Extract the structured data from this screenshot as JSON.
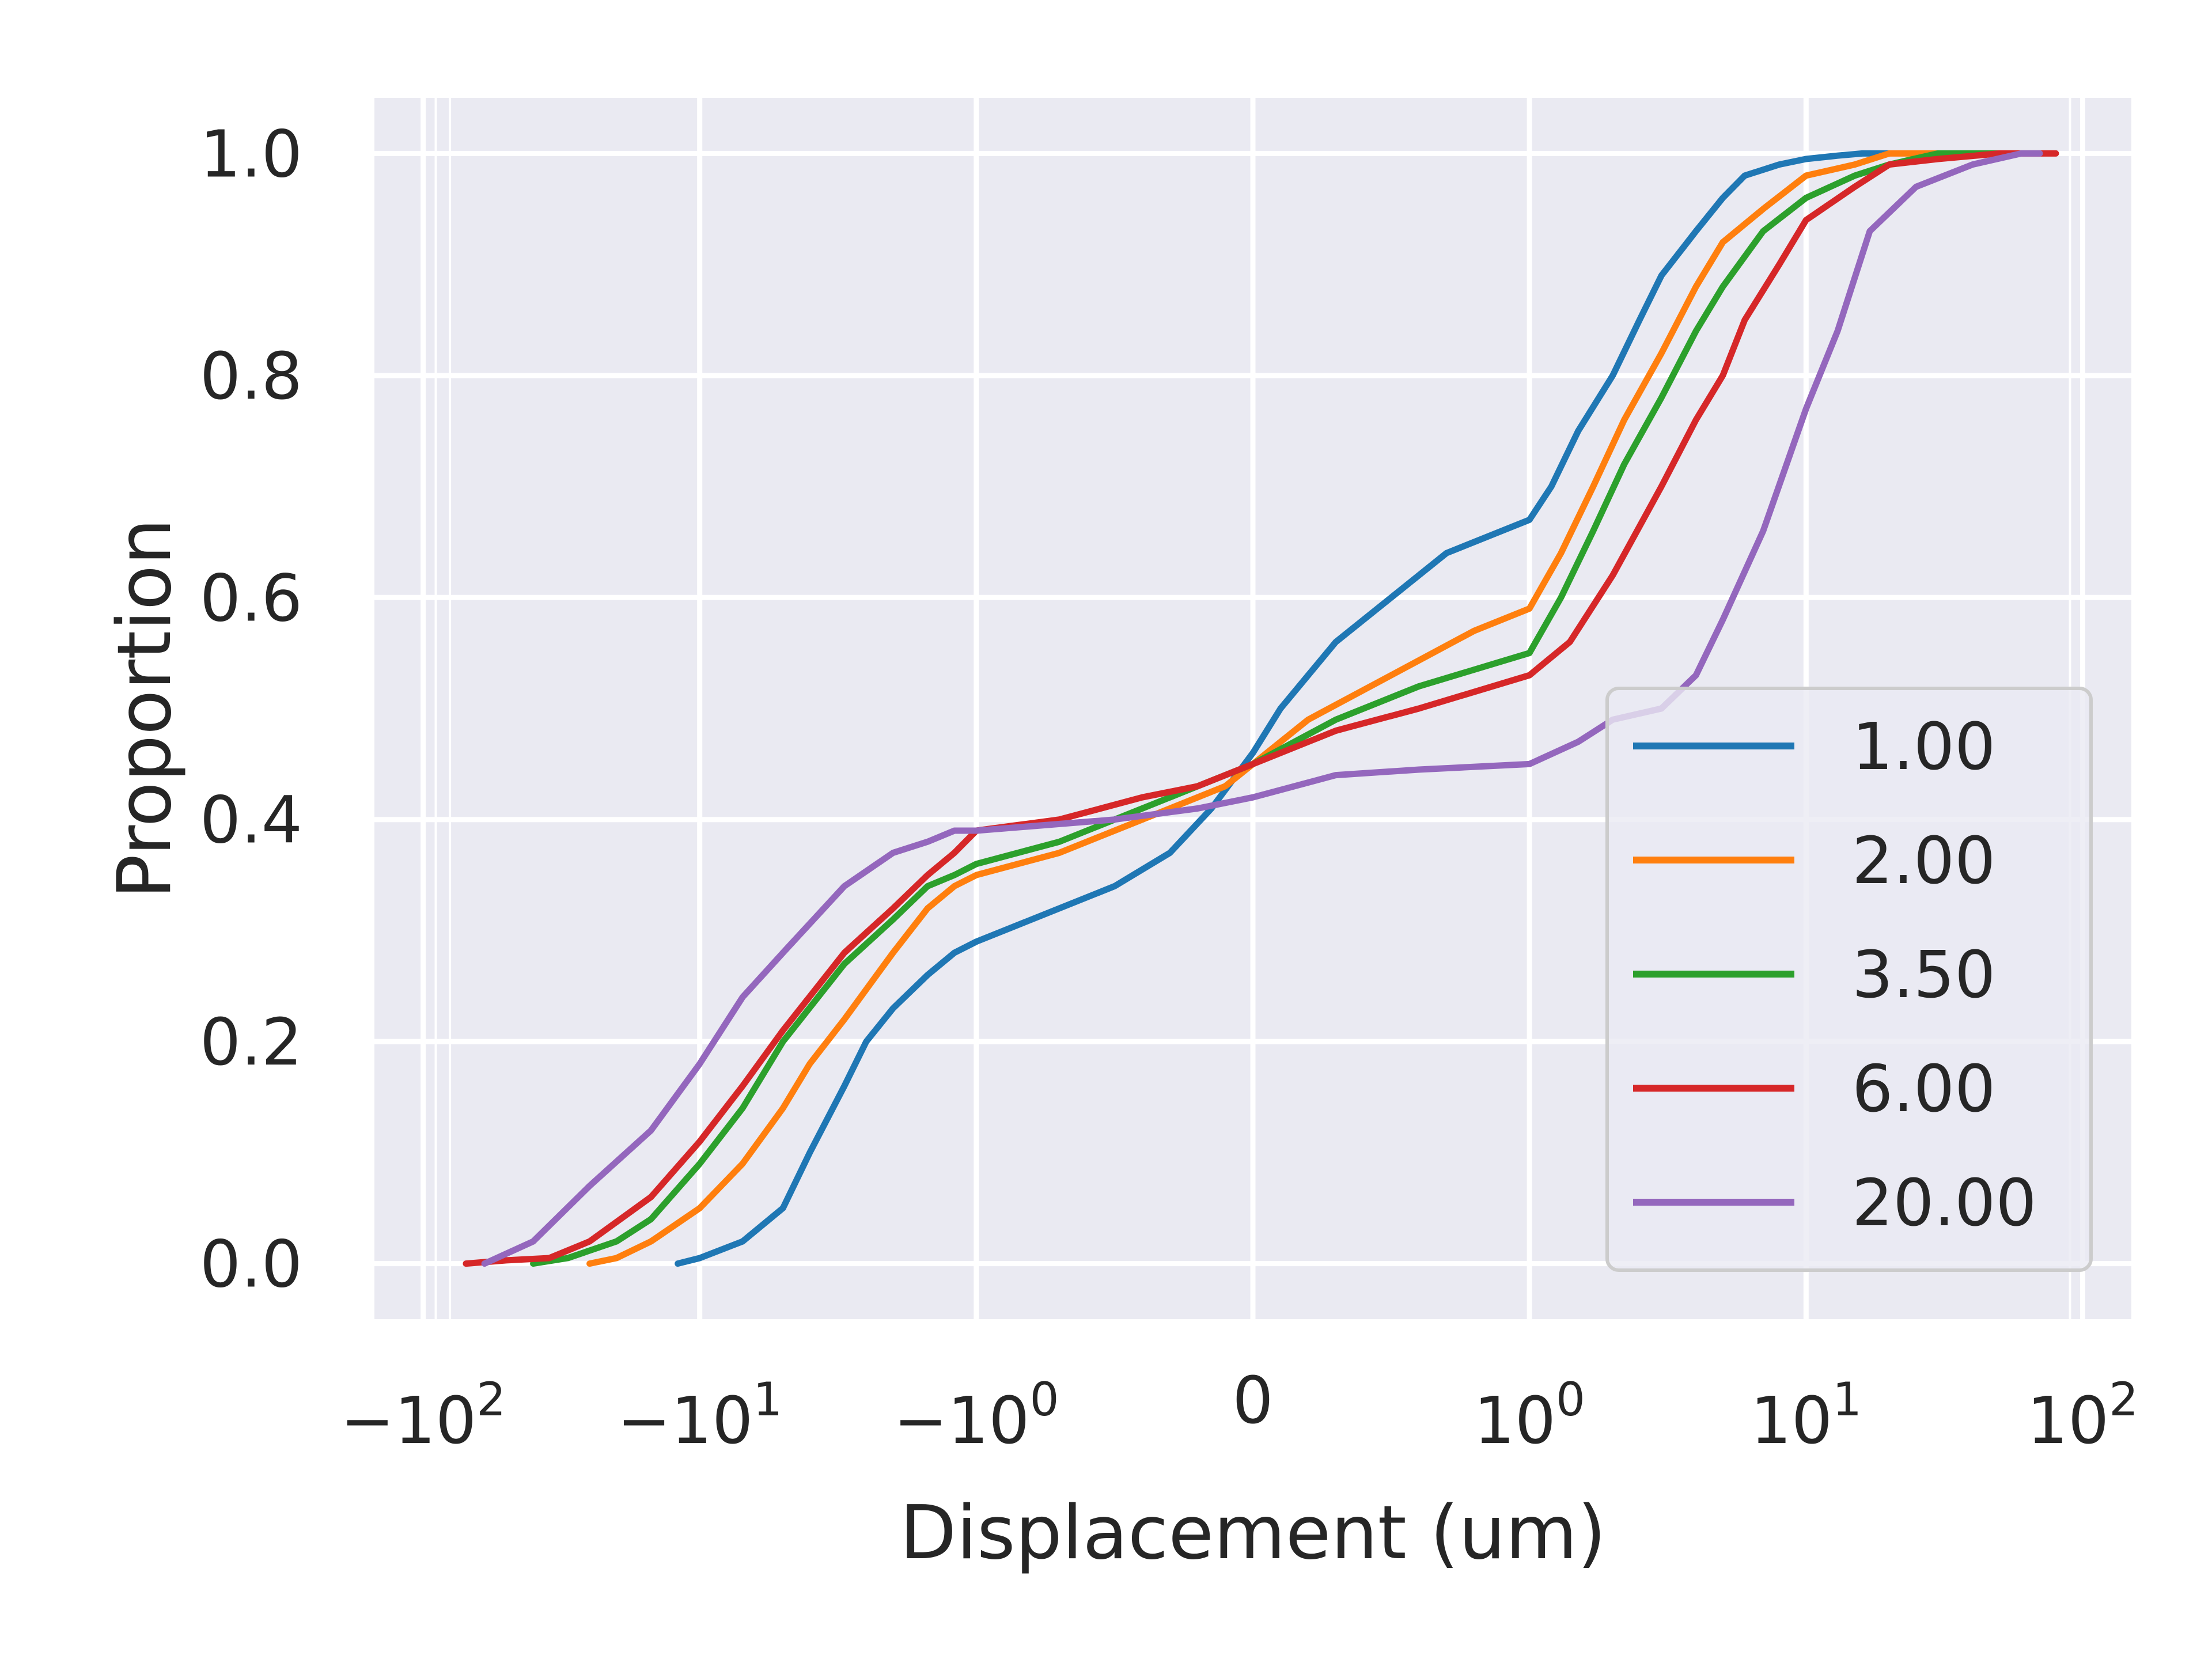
{
  "chart_data": {
    "type": "line",
    "title": "",
    "xlabel": "Displacement (um)",
    "ylabel": "Proportion",
    "xscale": "symlog",
    "xlim": [
      -150,
      150
    ],
    "ylim": [
      -0.05,
      1.05
    ],
    "grid": true,
    "background": "#EAEAF2",
    "x_ticks": [
      {
        "value": -100,
        "base": "−10",
        "exp": "2"
      },
      {
        "value": -10,
        "base": "−10",
        "exp": "1"
      },
      {
        "value": -1,
        "base": "−10",
        "exp": "0"
      },
      {
        "value": 0,
        "base": "0",
        "exp": ""
      },
      {
        "value": 1,
        "base": "10",
        "exp": "0"
      },
      {
        "value": 10,
        "base": "10",
        "exp": "1"
      },
      {
        "value": 100,
        "base": "10",
        "exp": "2"
      }
    ],
    "y_ticks": [
      {
        "value": 0.0,
        "label": "0.0"
      },
      {
        "value": 0.2,
        "label": "0.2"
      },
      {
        "value": 0.4,
        "label": "0.4"
      },
      {
        "value": 0.6,
        "label": "0.6"
      },
      {
        "value": 0.8,
        "label": "0.8"
      },
      {
        "value": 1.0,
        "label": "1.0"
      }
    ],
    "legend_position": "lower-right",
    "series": [
      {
        "name": "1.00",
        "color": "#1f77b4",
        "x": [
          -12,
          -10,
          -7,
          -5,
          -4,
          -3,
          -2.5,
          -2,
          -1.5,
          -1.2,
          -1,
          -0.8,
          -0.5,
          -0.3,
          -0.15,
          0,
          0.1,
          0.2,
          0.3,
          0.5,
          0.7,
          1,
          1.2,
          1.5,
          2,
          2.5,
          3,
          4,
          5,
          6,
          8,
          10,
          13,
          16,
          20
        ],
        "y": [
          0,
          0.005,
          0.02,
          0.05,
          0.1,
          0.16,
          0.2,
          0.23,
          0.26,
          0.28,
          0.29,
          0.31,
          0.34,
          0.37,
          0.41,
          0.46,
          0.5,
          0.53,
          0.56,
          0.6,
          0.64,
          0.67,
          0.7,
          0.75,
          0.8,
          0.85,
          0.89,
          0.93,
          0.96,
          0.98,
          0.99,
          0.995,
          0.998,
          1.0,
          1.0
        ]
      },
      {
        "name": "2.00",
        "color": "#ff7f0e",
        "x": [
          -25,
          -20,
          -15,
          -10,
          -7,
          -5,
          -4,
          -3,
          -2,
          -1.5,
          -1.2,
          -1,
          -0.7,
          -0.5,
          -0.3,
          -0.1,
          0,
          0.2,
          0.5,
          0.8,
          1,
          1.3,
          1.7,
          2.2,
          3,
          4,
          5,
          7,
          10,
          15,
          20,
          30
        ],
        "y": [
          0,
          0.005,
          0.02,
          0.05,
          0.09,
          0.14,
          0.18,
          0.22,
          0.28,
          0.32,
          0.34,
          0.35,
          0.37,
          0.39,
          0.41,
          0.43,
          0.45,
          0.49,
          0.53,
          0.57,
          0.59,
          0.64,
          0.7,
          0.76,
          0.82,
          0.88,
          0.92,
          0.95,
          0.98,
          0.99,
          1.0,
          1.0
        ]
      },
      {
        "name": "3.50",
        "color": "#2ca02c",
        "x": [
          -40,
          -30,
          -20,
          -15,
          -10,
          -7,
          -5,
          -3,
          -2,
          -1.5,
          -1.2,
          -1,
          -0.7,
          -0.4,
          -0.2,
          0,
          0.3,
          0.6,
          1,
          1.3,
          1.7,
          2.2,
          3,
          4,
          5,
          7,
          10,
          15,
          20,
          30,
          50
        ],
        "y": [
          0,
          0.005,
          0.02,
          0.04,
          0.09,
          0.14,
          0.2,
          0.27,
          0.31,
          0.34,
          0.35,
          0.36,
          0.38,
          0.41,
          0.43,
          0.45,
          0.49,
          0.52,
          0.55,
          0.6,
          0.66,
          0.72,
          0.78,
          0.84,
          0.88,
          0.93,
          0.96,
          0.98,
          0.99,
          1.0,
          1.0
        ]
      },
      {
        "name": "6.00",
        "color": "#d62728",
        "x": [
          -70,
          -50,
          -35,
          -25,
          -15,
          -10,
          -7,
          -5,
          -3,
          -2,
          -1.5,
          -1.2,
          -1,
          -0.7,
          -0.4,
          -0.2,
          0,
          0.3,
          0.6,
          1,
          1.4,
          2,
          3,
          4,
          5,
          6,
          8,
          10,
          15,
          20,
          30,
          50,
          80
        ],
        "y": [
          0,
          0.003,
          0.005,
          0.02,
          0.06,
          0.11,
          0.16,
          0.21,
          0.28,
          0.32,
          0.35,
          0.37,
          0.39,
          0.4,
          0.42,
          0.43,
          0.45,
          0.48,
          0.5,
          0.53,
          0.56,
          0.62,
          0.7,
          0.76,
          0.8,
          0.85,
          0.9,
          0.94,
          0.97,
          0.99,
          0.995,
          1.0,
          1.0
        ]
      },
      {
        "name": "20.00",
        "color": "#9467bd",
        "x": [
          -60,
          -40,
          -25,
          -15,
          -10,
          -7,
          -5,
          -3,
          -2,
          -1.5,
          -1.2,
          -1,
          -0.5,
          -0.2,
          0,
          0.3,
          0.6,
          1,
          1.5,
          2,
          3,
          4,
          5,
          7,
          10,
          13,
          17,
          25,
          40,
          60,
          70
        ],
        "y": [
          0,
          0.02,
          0.07,
          0.12,
          0.18,
          0.24,
          0.28,
          0.34,
          0.37,
          0.38,
          0.39,
          0.39,
          0.4,
          0.41,
          0.42,
          0.44,
          0.445,
          0.45,
          0.47,
          0.49,
          0.5,
          0.53,
          0.58,
          0.66,
          0.77,
          0.84,
          0.93,
          0.97,
          0.99,
          1.0,
          1.0
        ]
      }
    ]
  }
}
